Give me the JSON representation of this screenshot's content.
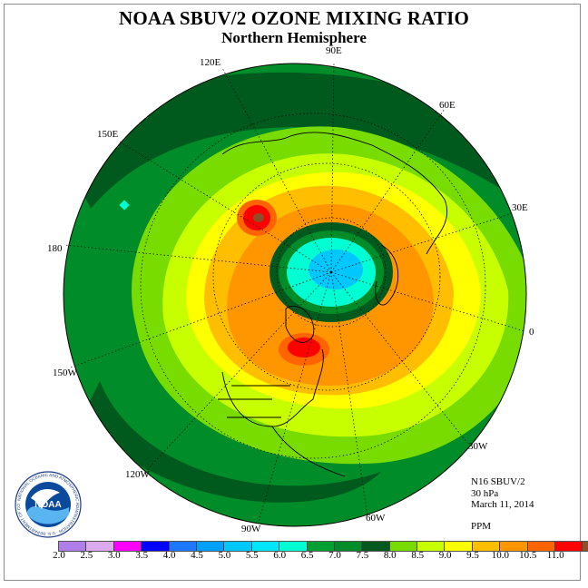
{
  "title": "NOAA SBUV/2 OZONE MIXING RATIO",
  "subtitle": "Northern Hemisphere",
  "longitude_labels": [
    "90E",
    "60E",
    "30E",
    "0",
    "30W",
    "60W",
    "90W",
    "120W",
    "150W",
    "180",
    "150E",
    "120E"
  ],
  "info": {
    "instrument": "N16 SBUV/2",
    "level": "30 hPa",
    "date": "March 11, 2014",
    "units": "PPM"
  },
  "colorbar": {
    "ticks": [
      "2.0",
      "2.5",
      "3.0",
      "3.5",
      "4.0",
      "4.5",
      "5.0",
      "5.5",
      "6.0",
      "6.5",
      "7.0",
      "7.5",
      "8.0",
      "8.5",
      "9.0",
      "9.5",
      "10.0",
      "10.5",
      "11.0"
    ],
    "colors": [
      "#b07ee8",
      "#dcaaf0",
      "#ff00ff",
      "#0000ff",
      "#1e78ff",
      "#00a0ff",
      "#00c8ff",
      "#00e6ff",
      "#00ffd2",
      "#00a032",
      "#008c28",
      "#005a1e",
      "#78dc00",
      "#c8ff00",
      "#ffff00",
      "#ffbe00",
      "#ff9600",
      "#ff6400",
      "#ff0000",
      "#8c5028"
    ]
  },
  "logo": {
    "text": "NOAA",
    "ring_text": "NATIONAL OCEANIC AND ATMOSPHERIC ADMINISTRATION · U.S. DEPARTMENT OF COMMERCE"
  },
  "map_colors": {
    "dark_green": "#005a1e",
    "mid_green": "#008c28",
    "green": "#00a032",
    "lime": "#78dc00",
    "yellow_green": "#c8ff00",
    "yellow": "#ffff00",
    "orange": "#ffbe00",
    "dark_orange": "#ff9600",
    "red_orange": "#ff6400",
    "red": "#ff0000",
    "brown": "#8c5028",
    "cyan": "#00ffd2",
    "light_blue": "#00c8ff"
  }
}
